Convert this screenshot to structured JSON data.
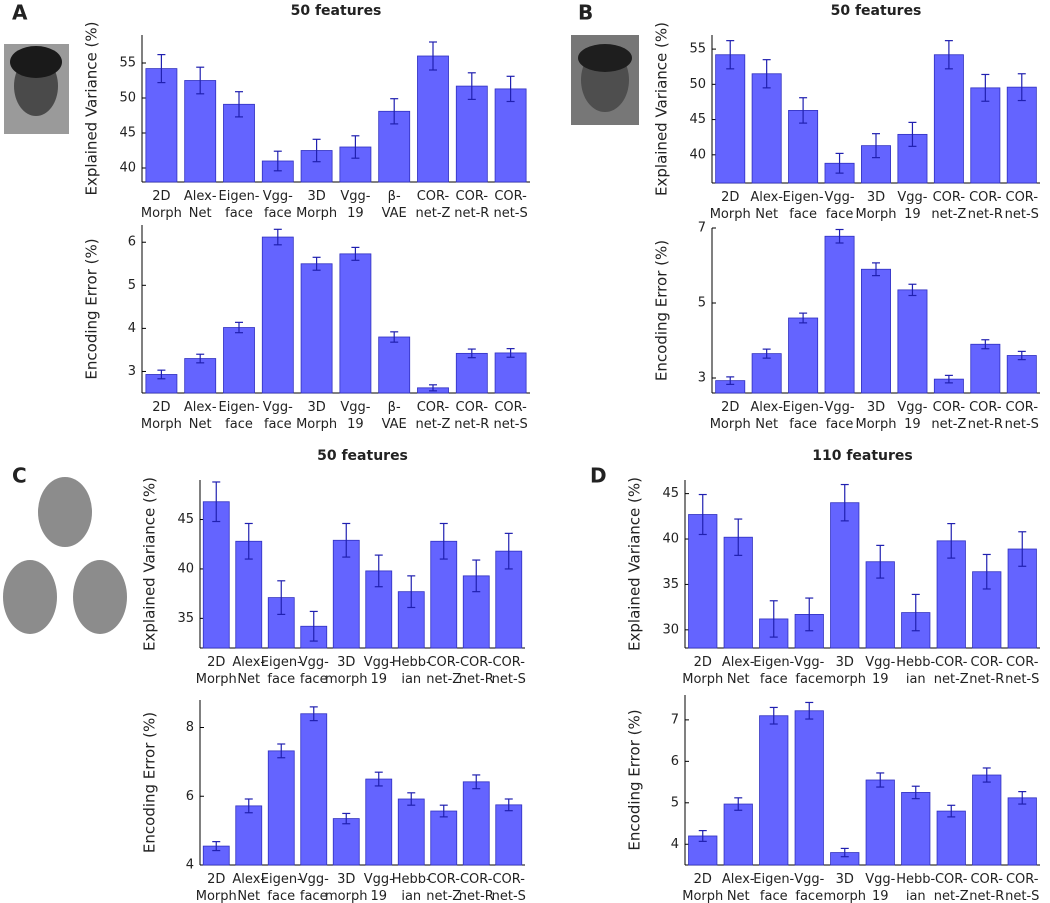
{
  "chart_data": [
    {
      "type": "bar",
      "panel": "A",
      "title": "50 features",
      "ylabel": "Explained Variance (%)",
      "categories": [
        "2D\nMorph",
        "Alex-\nNet",
        "Eigen-\nface",
        "Vgg-\nface",
        "3D\nMorph",
        "Vgg-\n19",
        "β-\nVAE",
        "COR-\nnet-Z",
        "COR-\nnet-R",
        "COR-\nnet-S"
      ],
      "values": [
        54.2,
        52.5,
        49.1,
        41.0,
        42.5,
        43.0,
        48.1,
        56.0,
        51.7,
        51.3
      ],
      "errors": [
        2.0,
        1.9,
        1.8,
        1.4,
        1.6,
        1.6,
        1.8,
        2.0,
        1.9,
        1.8
      ],
      "color": "#6464ff",
      "ylim": [
        38,
        59
      ],
      "yticks": [
        40,
        45,
        50,
        55
      ]
    },
    {
      "type": "bar",
      "ylabel": "Encoding Error (%)",
      "categories": [
        "2D\nMorph",
        "Alex-\nNet",
        "Eigen-\nface",
        "Vgg-\nface",
        "3D\nMorph",
        "Vgg-\n19",
        "β-\nVAE",
        "COR-\nnet-Z",
        "COR-\nnet-R",
        "COR-\nnet-S"
      ],
      "values": [
        2.93,
        3.3,
        4.02,
        6.12,
        5.5,
        5.73,
        3.8,
        2.62,
        3.42,
        3.43
      ],
      "errors": [
        0.1,
        0.1,
        0.12,
        0.18,
        0.15,
        0.15,
        0.12,
        0.07,
        0.1,
        0.1
      ],
      "color": "#6464ff",
      "ylim": [
        2.5,
        6.4
      ],
      "yticks": [
        3,
        4,
        5,
        6
      ]
    },
    {
      "type": "bar",
      "panel": "B",
      "title": "50 features",
      "ylabel": "Explained Variance (%)",
      "categories": [
        "2D\nMorph",
        "Alex-\nNet",
        "Eigen-\nface",
        "Vgg-\nface",
        "3D\nMorph",
        "Vgg-\n19",
        "COR-\nnet-Z",
        "COR-\nnet-R",
        "COR-\nnet-S"
      ],
      "values": [
        54.2,
        51.5,
        46.3,
        38.8,
        41.3,
        42.9,
        54.2,
        49.5,
        49.6
      ],
      "errors": [
        2.0,
        2.0,
        1.8,
        1.4,
        1.7,
        1.7,
        2.0,
        1.9,
        1.9
      ],
      "color": "#6464ff",
      "ylim": [
        36,
        57
      ],
      "yticks": [
        40,
        45,
        50,
        55
      ]
    },
    {
      "type": "bar",
      "ylabel": "Encoding Error (%)",
      "categories": [
        "2D\nMorph",
        "Alex-\nNet",
        "Eigen-\nface",
        "Vgg-\nface",
        "3D\nMorph",
        "Vgg-\n19",
        "COR-\nnet-Z",
        "COR-\nnet-R",
        "COR-\nnet-S"
      ],
      "values": [
        2.93,
        3.65,
        4.6,
        6.78,
        5.9,
        5.35,
        2.97,
        3.9,
        3.6
      ],
      "errors": [
        0.1,
        0.12,
        0.13,
        0.18,
        0.17,
        0.15,
        0.1,
        0.12,
        0.11
      ],
      "color": "#6464ff",
      "ylim": [
        2.6,
        7.0
      ],
      "yticks": [
        3,
        5,
        7
      ]
    },
    {
      "type": "bar",
      "panel": "C",
      "title": "50 features",
      "ylabel": "Explained Variance (%)",
      "categories": [
        "2D\nMorph",
        "Alex-\nNet",
        "Eigen-\nface",
        "Vgg-\nface",
        "3D\nmorph",
        "Vgg-\n19",
        "Hebb-\nian",
        "COR-\nnet-Z",
        "COR-\nnet-R",
        "COR-\nnet-S"
      ],
      "values": [
        46.8,
        42.8,
        37.1,
        34.2,
        42.9,
        39.8,
        37.7,
        42.8,
        39.3,
        41.8
      ],
      "errors": [
        2.0,
        1.8,
        1.7,
        1.5,
        1.7,
        1.6,
        1.6,
        1.8,
        1.6,
        1.8
      ],
      "color": "#6464ff",
      "ylim": [
        32,
        49
      ],
      "yticks": [
        35,
        40,
        45
      ]
    },
    {
      "type": "bar",
      "ylabel": "Encoding Error (%)",
      "categories": [
        "2D\nMorph",
        "Alex-\nNet",
        "Eigen-\nface",
        "Vgg-\nface",
        "3D\nmorph",
        "Vgg-\n19",
        "Hebb-\nian",
        "COR-\nnet-Z",
        "COR-\nnet-R",
        "COR-\nnet-S"
      ],
      "values": [
        4.55,
        5.72,
        7.32,
        8.4,
        5.35,
        6.5,
        5.92,
        5.57,
        6.42,
        5.75
      ],
      "errors": [
        0.13,
        0.2,
        0.2,
        0.2,
        0.15,
        0.2,
        0.18,
        0.17,
        0.2,
        0.17
      ],
      "color": "#6464ff",
      "ylim": [
        4,
        8.8
      ],
      "yticks": [
        4,
        6,
        8
      ]
    },
    {
      "type": "bar",
      "panel": "D",
      "title": "110 features",
      "ylabel": "Explained Variance (%)",
      "categories": [
        "2D\nMorph",
        "Alex-\nNet",
        "Eigen-\nface",
        "Vgg-\nface",
        "3D\nmorph",
        "Vgg-\n19",
        "Hebb-\nian",
        "COR-\nnet-Z",
        "COR-\nnet-R",
        "COR-\nnet-S"
      ],
      "values": [
        42.7,
        40.2,
        31.2,
        31.7,
        44.0,
        37.5,
        31.9,
        39.8,
        36.4,
        38.9
      ],
      "errors": [
        2.2,
        2.0,
        2.0,
        1.8,
        2.0,
        1.8,
        2.0,
        1.9,
        1.9,
        1.9
      ],
      "color": "#6464ff",
      "ylim": [
        28,
        46.5
      ],
      "yticks": [
        30,
        35,
        40,
        45
      ]
    },
    {
      "type": "bar",
      "ylabel": "Encoding Error (%)",
      "categories": [
        "2D\nMorph",
        "Alex-\nNet",
        "Eigen-\nface",
        "Vgg-\nface",
        "3D\nmorph",
        "Vgg-\n19",
        "Hebb-\nian",
        "COR-\nnet-Z",
        "COR-\nnet-R",
        "COR-\nnet-S"
      ],
      "values": [
        4.2,
        4.97,
        7.1,
        7.22,
        3.8,
        5.55,
        5.25,
        4.8,
        5.67,
        5.12
      ],
      "errors": [
        0.13,
        0.15,
        0.2,
        0.2,
        0.1,
        0.17,
        0.15,
        0.14,
        0.17,
        0.15
      ],
      "color": "#6464ff",
      "ylim": [
        3.5,
        7.6
      ],
      "yticks": [
        4,
        5,
        6,
        7
      ]
    }
  ]
}
